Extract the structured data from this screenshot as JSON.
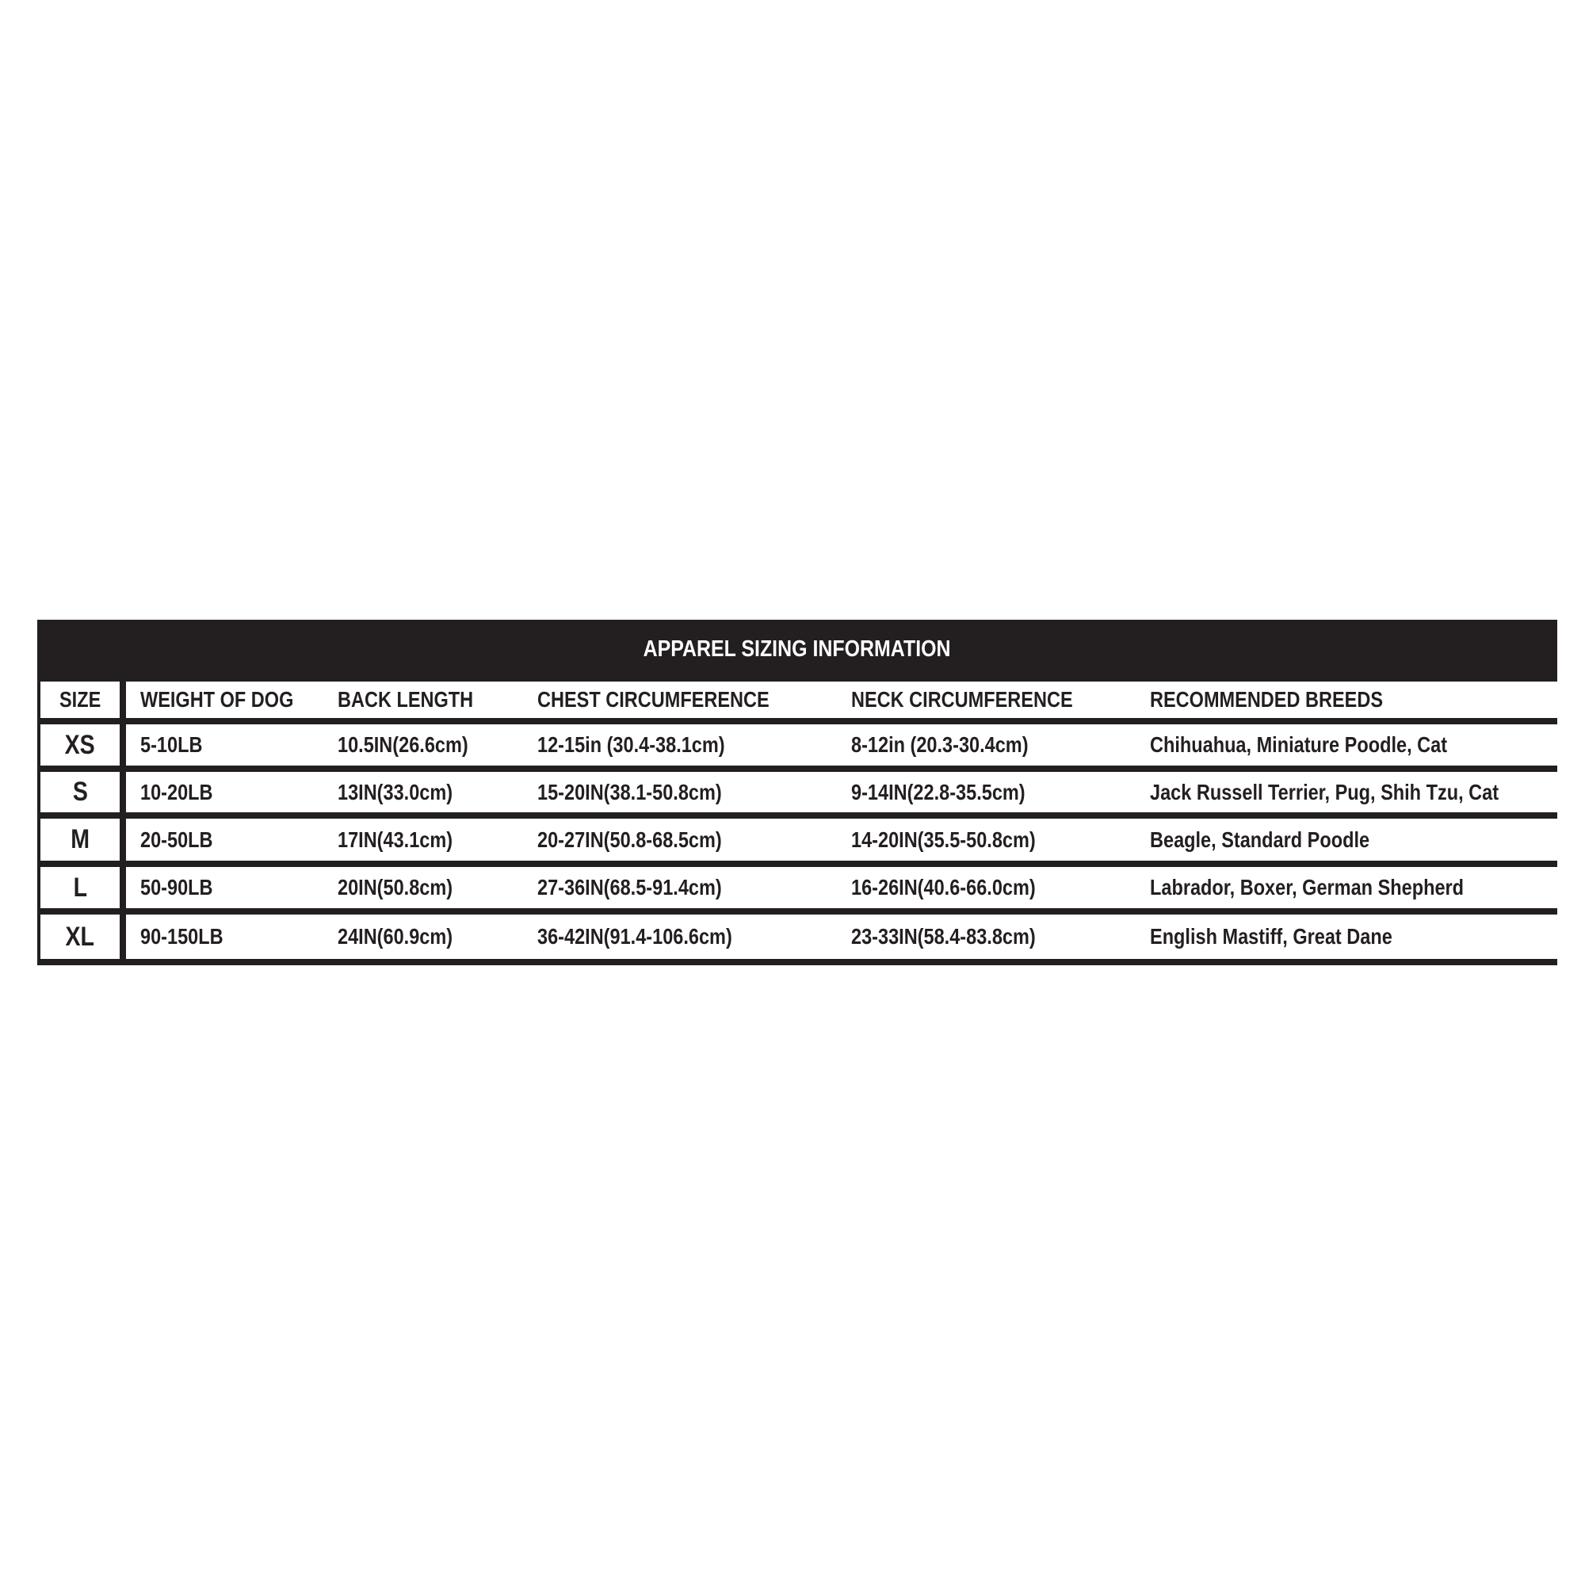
{
  "title": "APPAREL SIZING INFORMATION",
  "columns": [
    "SIZE",
    "WEIGHT OF DOG",
    "BACK LENGTH",
    "CHEST CIRCUMFERENCE",
    "NECK CIRCUMFERENCE",
    "RECOMMENDED BREEDS"
  ],
  "rows": [
    [
      "XS",
      "5-10LB",
      "10.5IN(26.6cm)",
      "12-15in (30.4-38.1cm)",
      "8-12in (20.3-30.4cm)",
      "Chihuahua, Miniature Poodle, Cat"
    ],
    [
      "S",
      "10-20LB",
      "13IN(33.0cm)",
      "15-20IN(38.1-50.8cm)",
      "9-14IN(22.8-35.5cm)",
      "Jack Russell Terrier, Pug, Shih Tzu, Cat"
    ],
    [
      "M",
      "20-50LB",
      "17IN(43.1cm)",
      "20-27IN(50.8-68.5cm)",
      "14-20IN(35.5-50.8cm)",
      "Beagle, Standard Poodle"
    ],
    [
      "L",
      "50-90LB",
      "20IN(50.8cm)",
      "27-36IN(68.5-91.4cm)",
      "16-26IN(40.6-66.0cm)",
      "Labrador, Boxer, German Shepherd"
    ],
    [
      "XL",
      "90-150LB",
      "24IN(60.9cm)",
      "36-42IN(91.4-106.6cm)",
      "23-33IN(58.4-83.8cm)",
      "English Mastiff, Great Dane"
    ]
  ],
  "colors": {
    "border": "#231f20",
    "header_text": "#ffffff",
    "cell_bg": "#ffffff"
  }
}
